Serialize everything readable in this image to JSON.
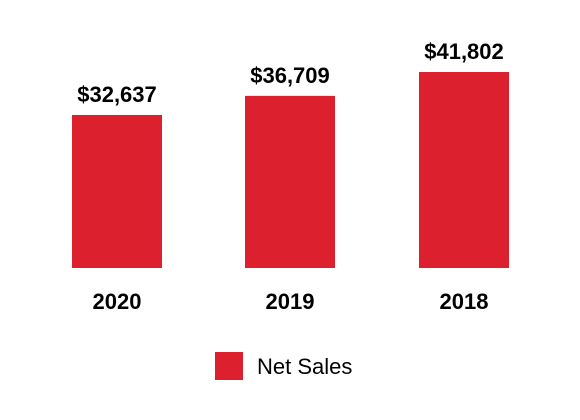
{
  "chart_data": {
    "type": "bar",
    "categories": [
      "2020",
      "2019",
      "2018"
    ],
    "series": [
      {
        "name": "Net Sales",
        "values": [
          32637,
          36709,
          41802
        ],
        "value_labels": [
          "$32,637",
          "$36,709",
          "$41,802"
        ]
      }
    ],
    "ylim": [
      0,
      41802
    ],
    "grid": false,
    "legend": "bottom-center"
  },
  "colors": {
    "bar": "#dc202e",
    "text": "#000000"
  }
}
